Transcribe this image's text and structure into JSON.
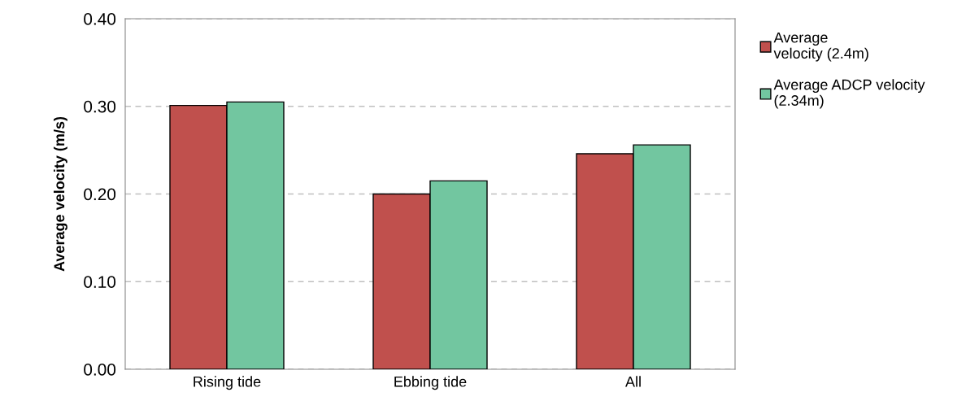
{
  "chart_data": {
    "type": "bar",
    "ylabel": "Average velocity (m/s)",
    "categories": [
      "Rising tide",
      "Ebbing tide",
      "All"
    ],
    "series": [
      {
        "name": "Average velocity (2.4m)",
        "color": "#c0504d",
        "values": [
          0.301,
          0.2,
          0.246
        ]
      },
      {
        "name": "Average ADCP velocity (2.34m)",
        "color": "#72c6a0",
        "values": [
          0.305,
          0.215,
          0.256
        ]
      }
    ],
    "ylim": [
      0,
      0.4
    ],
    "yticks": [
      {
        "value": 0,
        "label": "0.00"
      },
      {
        "value": 0.1,
        "label": "0.10"
      },
      {
        "value": 0.2,
        "label": "0.20"
      },
      {
        "value": 0.3,
        "label": "0.30"
      },
      {
        "value": 0.4,
        "label": "0.40"
      }
    ],
    "grid": "y",
    "legend": "top right"
  }
}
